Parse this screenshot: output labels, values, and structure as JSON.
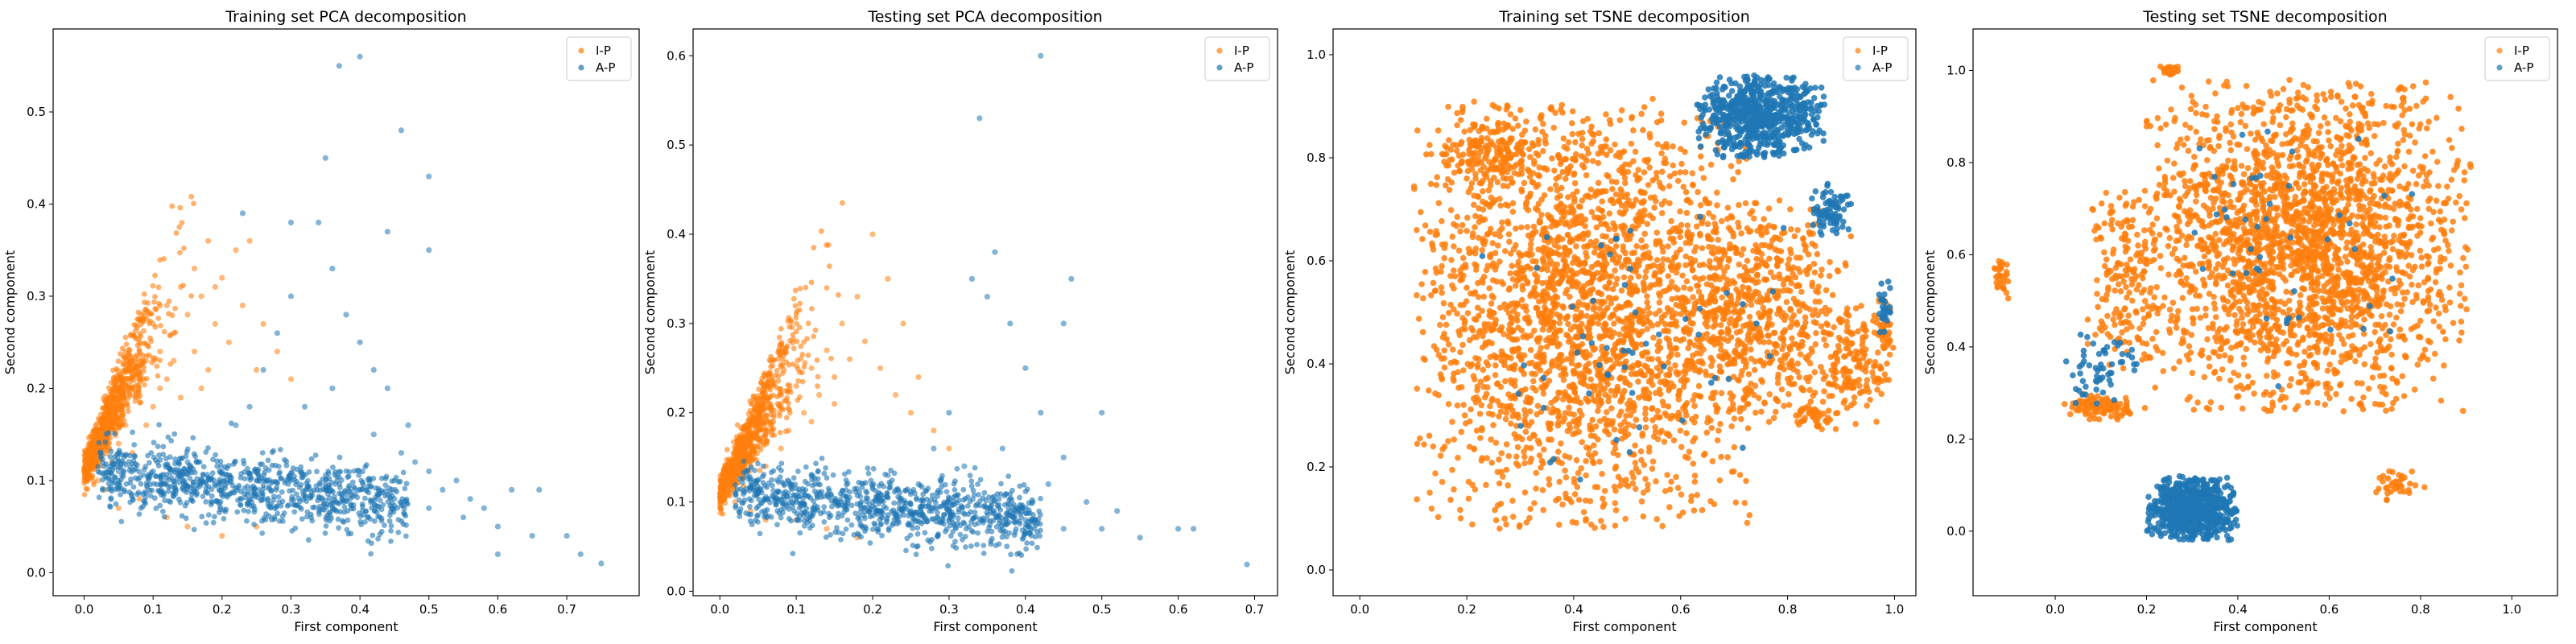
{
  "colors": {
    "ip": "#ff7f0e",
    "ap": "#1f77b4"
  },
  "chart_data": [
    {
      "type": "scatter",
      "title": "Training set PCA decomposition",
      "xlabel": "First component",
      "ylabel": "Second component",
      "xlim": [
        -0.045,
        0.805
      ],
      "ylim": [
        -0.025,
        0.59
      ],
      "xticks": [
        "0.0",
        "0.1",
        "0.2",
        "0.3",
        "0.4",
        "0.5",
        "0.6",
        "0.7"
      ],
      "yticks": [
        "0.0",
        "0.1",
        "0.2",
        "0.3",
        "0.4",
        "0.5"
      ],
      "legend": "top-right",
      "series": [
        {
          "name": "I-P",
          "color": "#ff7f0e",
          "points": [
            [
              0.0,
              0.11
            ],
            [
              0.02,
              0.12
            ],
            [
              0.03,
              0.15
            ],
            [
              0.04,
              0.17
            ],
            [
              0.05,
              0.19
            ],
            [
              0.05,
              0.14
            ],
            [
              0.06,
              0.22
            ],
            [
              0.07,
              0.2
            ],
            [
              0.08,
              0.25
            ],
            [
              0.09,
              0.23
            ],
            [
              0.1,
              0.27
            ],
            [
              0.1,
              0.18
            ],
            [
              0.11,
              0.24
            ],
            [
              0.12,
              0.29
            ],
            [
              0.13,
              0.26
            ],
            [
              0.14,
              0.31
            ],
            [
              0.15,
              0.28
            ],
            [
              0.16,
              0.33
            ],
            [
              0.17,
              0.3
            ],
            [
              0.18,
              0.36
            ],
            [
              0.19,
              0.27
            ],
            [
              0.2,
              0.32
            ],
            [
              0.21,
              0.25
            ],
            [
              0.22,
              0.35
            ],
            [
              0.23,
              0.29
            ],
            [
              0.24,
              0.36
            ],
            [
              0.25,
              0.22
            ],
            [
              0.26,
              0.27
            ],
            [
              0.28,
              0.24
            ],
            [
              0.3,
              0.21
            ],
            [
              0.03,
              0.09
            ],
            [
              0.05,
              0.07
            ],
            [
              0.08,
              0.08
            ],
            [
              0.12,
              0.06
            ],
            [
              0.15,
              0.05
            ],
            [
              0.2,
              0.04
            ],
            [
              0.25,
              0.05
            ],
            [
              0.07,
              0.13
            ],
            [
              0.09,
              0.16
            ],
            [
              0.12,
              0.21
            ],
            [
              0.14,
              0.19
            ],
            [
              0.16,
              0.24
            ],
            [
              0.18,
              0.22
            ],
            [
              0.02,
              0.1
            ],
            [
              0.04,
              0.12
            ],
            [
              0.06,
              0.16
            ],
            [
              0.11,
              0.2
            ],
            [
              0.13,
              0.23
            ],
            [
              0.17,
              0.2
            ],
            [
              0.19,
              0.31
            ]
          ]
        },
        {
          "name": "A-P",
          "color": "#1f77b4",
          "points": [
            [
              0.05,
              0.11
            ],
            [
              0.1,
              0.11
            ],
            [
              0.15,
              0.12
            ],
            [
              0.2,
              0.11
            ],
            [
              0.25,
              0.1
            ],
            [
              0.3,
              0.1
            ],
            [
              0.35,
              0.09
            ],
            [
              0.4,
              0.09
            ],
            [
              0.45,
              0.08
            ],
            [
              0.5,
              0.07
            ],
            [
              0.55,
              0.06
            ],
            [
              0.6,
              0.05
            ],
            [
              0.65,
              0.04
            ],
            [
              0.7,
              0.04
            ],
            [
              0.75,
              0.01
            ],
            [
              0.62,
              0.09
            ],
            [
              0.56,
              0.08
            ],
            [
              0.52,
              0.09
            ],
            [
              0.48,
              0.12
            ],
            [
              0.47,
              0.16
            ],
            [
              0.44,
              0.2
            ],
            [
              0.42,
              0.22
            ],
            [
              0.4,
              0.25
            ],
            [
              0.38,
              0.28
            ],
            [
              0.36,
              0.33
            ],
            [
              0.34,
              0.38
            ],
            [
              0.3,
              0.3
            ],
            [
              0.28,
              0.26
            ],
            [
              0.26,
              0.22
            ],
            [
              0.24,
              0.18
            ],
            [
              0.22,
              0.16
            ],
            [
              0.32,
              0.18
            ],
            [
              0.36,
              0.2
            ],
            [
              0.42,
              0.15
            ],
            [
              0.46,
              0.13
            ],
            [
              0.5,
              0.11
            ],
            [
              0.37,
              0.55
            ],
            [
              0.4,
              0.56
            ],
            [
              0.35,
              0.45
            ],
            [
              0.46,
              0.48
            ],
            [
              0.5,
              0.43
            ],
            [
              0.44,
              0.37
            ],
            [
              0.23,
              0.39
            ],
            [
              0.3,
              0.38
            ],
            [
              0.5,
              0.35
            ],
            [
              0.54,
              0.1
            ],
            [
              0.58,
              0.07
            ],
            [
              0.6,
              0.02
            ],
            [
              0.66,
              0.09
            ],
            [
              0.72,
              0.02
            ]
          ]
        }
      ]
    },
    {
      "type": "scatter",
      "title": "Testing set PCA decomposition",
      "xlabel": "First component",
      "ylabel": "Second component",
      "xlim": [
        -0.035,
        0.73
      ],
      "ylim": [
        -0.005,
        0.63
      ],
      "xticks": [
        "0.0",
        "0.1",
        "0.2",
        "0.3",
        "0.4",
        "0.5",
        "0.6",
        "0.7"
      ],
      "yticks": [
        "0.0",
        "0.1",
        "0.2",
        "0.3",
        "0.4",
        "0.5",
        "0.6"
      ],
      "legend": "top-right",
      "series": [
        {
          "name": "I-P",
          "color": "#ff7f0e",
          "points": [
            [
              0.0,
              0.11
            ],
            [
              0.02,
              0.12
            ],
            [
              0.03,
              0.13
            ],
            [
              0.04,
              0.15
            ],
            [
              0.05,
              0.17
            ],
            [
              0.06,
              0.14
            ],
            [
              0.07,
              0.19
            ],
            [
              0.08,
              0.21
            ],
            [
              0.09,
              0.18
            ],
            [
              0.1,
              0.23
            ],
            [
              0.11,
              0.2
            ],
            [
              0.12,
              0.25
            ],
            [
              0.13,
              0.22
            ],
            [
              0.14,
              0.27
            ],
            [
              0.15,
              0.24
            ],
            [
              0.16,
              0.3
            ],
            [
              0.17,
              0.26
            ],
            [
              0.18,
              0.33
            ],
            [
              0.19,
              0.28
            ],
            [
              0.2,
              0.4
            ],
            [
              0.21,
              0.25
            ],
            [
              0.22,
              0.35
            ],
            [
              0.23,
              0.22
            ],
            [
              0.24,
              0.3
            ],
            [
              0.25,
              0.2
            ],
            [
              0.26,
              0.24
            ],
            [
              0.28,
              0.18
            ],
            [
              0.3,
              0.16
            ],
            [
              0.04,
              0.09
            ],
            [
              0.06,
              0.08
            ],
            [
              0.1,
              0.08
            ],
            [
              0.14,
              0.07
            ],
            [
              0.18,
              0.06
            ],
            [
              0.08,
              0.16
            ],
            [
              0.12,
              0.19
            ],
            [
              0.15,
              0.21
            ],
            [
              0.02,
              0.1
            ]
          ]
        },
        {
          "name": "A-P",
          "color": "#1f77b4",
          "points": [
            [
              0.05,
              0.11
            ],
            [
              0.1,
              0.1
            ],
            [
              0.15,
              0.1
            ],
            [
              0.2,
              0.1
            ],
            [
              0.25,
              0.09
            ],
            [
              0.3,
              0.09
            ],
            [
              0.35,
              0.08
            ],
            [
              0.4,
              0.08
            ],
            [
              0.45,
              0.07
            ],
            [
              0.5,
              0.07
            ],
            [
              0.55,
              0.06
            ],
            [
              0.6,
              0.07
            ],
            [
              0.62,
              0.07
            ],
            [
              0.69,
              0.03
            ],
            [
              0.48,
              0.1
            ],
            [
              0.45,
              0.15
            ],
            [
              0.42,
              0.2
            ],
            [
              0.4,
              0.25
            ],
            [
              0.38,
              0.3
            ],
            [
              0.35,
              0.33
            ],
            [
              0.33,
              0.35
            ],
            [
              0.36,
              0.38
            ],
            [
              0.34,
              0.53
            ],
            [
              0.42,
              0.6
            ],
            [
              0.46,
              0.35
            ],
            [
              0.45,
              0.3
            ],
            [
              0.3,
              0.2
            ],
            [
              0.28,
              0.16
            ],
            [
              0.32,
              0.14
            ],
            [
              0.37,
              0.16
            ],
            [
              0.43,
              0.12
            ],
            [
              0.52,
              0.09
            ],
            [
              0.5,
              0.2
            ],
            [
              0.26,
              0.12
            ],
            [
              0.22,
              0.13
            ]
          ]
        }
      ]
    },
    {
      "type": "scatter",
      "title": "Training set TSNE decomposition",
      "xlabel": "First component",
      "ylabel": "Second component",
      "xlim": [
        -0.05,
        1.04
      ],
      "ylim": [
        -0.05,
        1.05
      ],
      "xticks": [
        "0.0",
        "0.2",
        "0.4",
        "0.6",
        "0.8",
        "1.0"
      ],
      "yticks": [
        "0.0",
        "0.2",
        "0.4",
        "0.6",
        "0.8",
        "1.0"
      ],
      "legend": "top-right",
      "series": [
        {
          "name": "I-P",
          "color": "#ff7f0e",
          "clusters": [
            [
              0.42,
              0.5,
              0.32,
              0.42,
              2600
            ],
            [
              0.75,
              0.5,
              0.17,
              0.22,
              700
            ],
            [
              0.25,
              0.82,
              0.1,
              0.08,
              200
            ],
            [
              0.92,
              0.4,
              0.06,
              0.12,
              150
            ],
            [
              0.98,
              0.45,
              0.02,
              0.1,
              60
            ],
            [
              0.85,
              0.3,
              0.05,
              0.03,
              40
            ]
          ]
        },
        {
          "name": "A-P",
          "color": "#1f77b4",
          "clusters": [
            [
              0.75,
              0.88,
              0.12,
              0.08,
              700
            ],
            [
              0.88,
              0.7,
              0.04,
              0.05,
              80
            ],
            [
              0.5,
              0.4,
              0.3,
              0.3,
              60
            ],
            [
              0.98,
              0.5,
              0.015,
              0.06,
              30
            ]
          ]
        }
      ]
    },
    {
      "type": "scatter",
      "title": "Testing set TSNE decomposition",
      "xlabel": "First component",
      "ylabel": "Second component",
      "xlim": [
        -0.18,
        1.1
      ],
      "ylim": [
        -0.14,
        1.09
      ],
      "xticks": [
        "0.0",
        "0.2",
        "0.4",
        "0.6",
        "0.8",
        "1.0"
      ],
      "yticks": [
        "0.0",
        "0.2",
        "0.4",
        "0.6",
        "0.8",
        "1.0"
      ],
      "legend": "top-right",
      "series": [
        {
          "name": "I-P",
          "color": "#ff7f0e",
          "clusters": [
            [
              0.55,
              0.62,
              0.36,
              0.36,
              2600
            ],
            [
              0.15,
              0.55,
              0.08,
              0.2,
              200
            ],
            [
              0.1,
              0.27,
              0.08,
              0.03,
              120
            ],
            [
              -0.12,
              0.55,
              0.02,
              0.05,
              40
            ],
            [
              0.25,
              1.0,
              0.02,
              0.01,
              30
            ],
            [
              0.75,
              0.1,
              0.06,
              0.04,
              40
            ]
          ]
        },
        {
          "name": "A-P",
          "color": "#1f77b4",
          "clusters": [
            [
              0.3,
              0.05,
              0.1,
              0.07,
              800
            ],
            [
              0.1,
              0.35,
              0.08,
              0.1,
              60
            ],
            [
              0.5,
              0.6,
              0.3,
              0.3,
              50
            ]
          ]
        }
      ]
    }
  ]
}
